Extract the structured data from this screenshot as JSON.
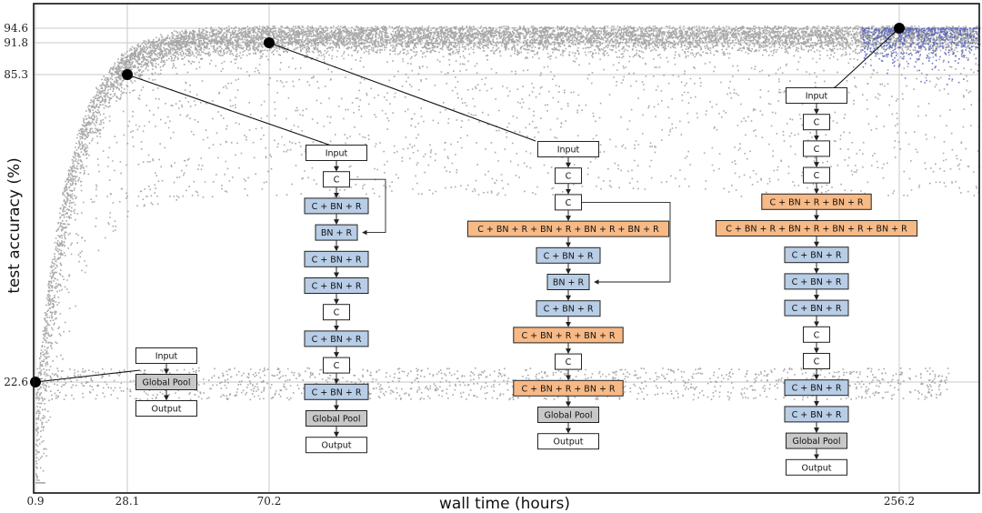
{
  "chart_data": {
    "type": "scatter",
    "xlabel": "wall time (hours)",
    "ylabel": "test accuracy (%)",
    "xticks": [
      "0.9",
      "28.1",
      "70.2",
      "256.2"
    ],
    "yticks": [
      "94.6",
      "91.8",
      "85.3",
      "22.6"
    ],
    "xlim": [
      0.9,
      280
    ],
    "ylim": [
      5,
      100
    ],
    "grid": true,
    "highlighted_points": [
      {
        "x": 0.9,
        "y": 22.6
      },
      {
        "x": 28.1,
        "y": 85.3
      },
      {
        "x": 70.2,
        "y": 91.8
      },
      {
        "x": 256.2,
        "y": 94.6
      }
    ],
    "series_colors": {
      "population": "#8c8c8c",
      "late_population": "#4a57b8",
      "highlight": "#000000"
    },
    "box_colors": {
      "plain": "#ffffff",
      "blue": "#b8cde6",
      "orange": "#f7b985",
      "gray": "#c8c8c8"
    },
    "architectures": [
      {
        "point_index": 0,
        "layers": [
          {
            "label": "Input",
            "style": "plain"
          },
          {
            "label": "Global Pool",
            "style": "gray"
          },
          {
            "label": "Output",
            "style": "plain"
          }
        ],
        "skip": null
      },
      {
        "point_index": 1,
        "layers": [
          {
            "label": "Input",
            "style": "plain"
          },
          {
            "label": "C",
            "style": "plain"
          },
          {
            "label": "C + BN + R",
            "style": "blue"
          },
          {
            "label": "BN + R",
            "style": "blue"
          },
          {
            "label": "C + BN + R",
            "style": "blue"
          },
          {
            "label": "C + BN + R",
            "style": "blue"
          },
          {
            "label": "C",
            "style": "plain"
          },
          {
            "label": "C + BN + R",
            "style": "blue"
          },
          {
            "label": "C",
            "style": "plain"
          },
          {
            "label": "C + BN + R",
            "style": "blue"
          },
          {
            "label": "Global Pool",
            "style": "gray"
          },
          {
            "label": "Output",
            "style": "plain"
          }
        ],
        "skip": [
          1,
          3
        ]
      },
      {
        "point_index": 2,
        "layers": [
          {
            "label": "Input",
            "style": "plain"
          },
          {
            "label": "C",
            "style": "plain"
          },
          {
            "label": "C",
            "style": "plain"
          },
          {
            "label": "C + BN + R + BN + R + BN + R + BN + R",
            "style": "orange"
          },
          {
            "label": "C + BN + R",
            "style": "blue"
          },
          {
            "label": "BN + R",
            "style": "blue"
          },
          {
            "label": "C + BN + R",
            "style": "blue"
          },
          {
            "label": "C + BN + R + BN + R",
            "style": "orange"
          },
          {
            "label": "C",
            "style": "plain"
          },
          {
            "label": "C + BN + R + BN + R",
            "style": "orange"
          },
          {
            "label": "Global Pool",
            "style": "gray"
          },
          {
            "label": "Output",
            "style": "plain"
          }
        ],
        "skip": [
          2,
          5
        ]
      },
      {
        "point_index": 3,
        "layers": [
          {
            "label": "Input",
            "style": "plain"
          },
          {
            "label": "C",
            "style": "plain"
          },
          {
            "label": "C",
            "style": "plain"
          },
          {
            "label": "C",
            "style": "plain"
          },
          {
            "label": "C + BN + R + BN + R",
            "style": "orange"
          },
          {
            "label": "C + BN + R + BN + R + BN + R + BN + R",
            "style": "orange"
          },
          {
            "label": "C + BN + R",
            "style": "blue"
          },
          {
            "label": "C + BN + R",
            "style": "blue"
          },
          {
            "label": "C + BN + R",
            "style": "blue"
          },
          {
            "label": "C",
            "style": "plain"
          },
          {
            "label": "C",
            "style": "plain"
          },
          {
            "label": "C + BN + R",
            "style": "blue"
          },
          {
            "label": "C + BN + R",
            "style": "blue"
          },
          {
            "label": "Global Pool",
            "style": "gray"
          },
          {
            "label": "Output",
            "style": "plain"
          }
        ],
        "skip": null
      }
    ]
  }
}
